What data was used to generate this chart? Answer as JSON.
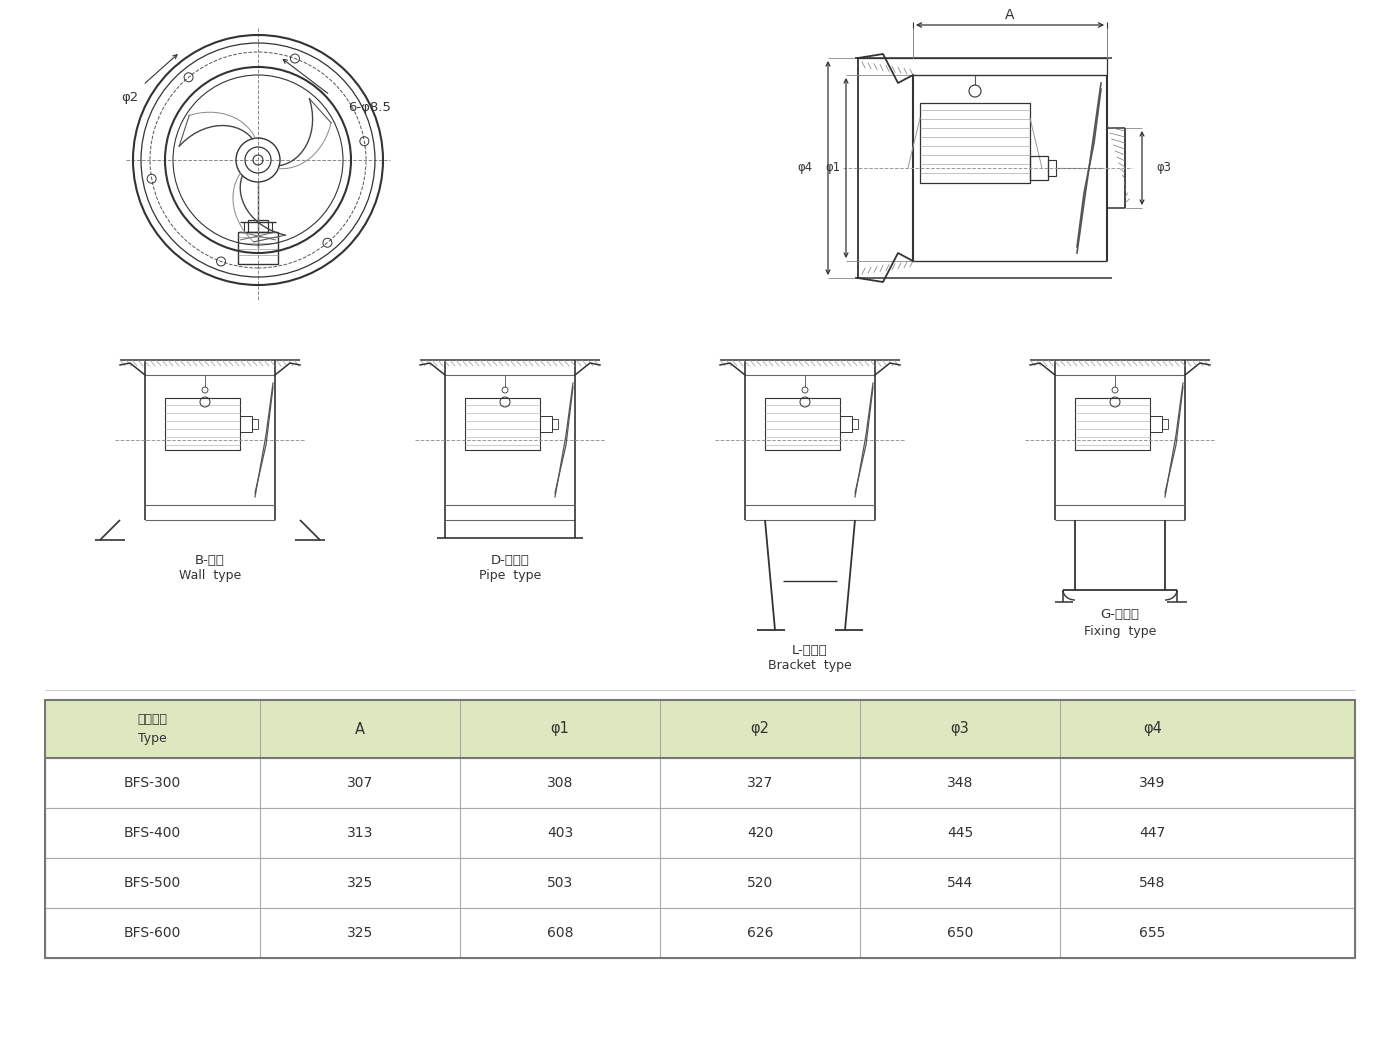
{
  "table_headers": [
    "型號規格\nType",
    "A",
    "φ1",
    "φ2",
    "φ3",
    "φ4"
  ],
  "table_rows": [
    [
      "BFS-300",
      "307",
      "308",
      "327",
      "348",
      "349"
    ],
    [
      "BFS-400",
      "313",
      "403",
      "420",
      "445",
      "447"
    ],
    [
      "BFS-500",
      "325",
      "503",
      "520",
      "544",
      "548"
    ],
    [
      "BFS-600",
      "325",
      "608",
      "626",
      "650",
      "655"
    ]
  ],
  "header_bg": "#dde8c0",
  "row_bg": "#ffffff",
  "table_border": "#888888",
  "font_color": "#333333",
  "type_labels_zh": [
    "B-壁式",
    "D-管道式",
    "L-岗位式",
    "G-固定式"
  ],
  "type_labels_en": [
    "Wall  type",
    "Pipe  type",
    "Bracket  type",
    "Fixing  type"
  ],
  "bg_color": "#ffffff",
  "lc": "#333333",
  "lw": 1.2
}
